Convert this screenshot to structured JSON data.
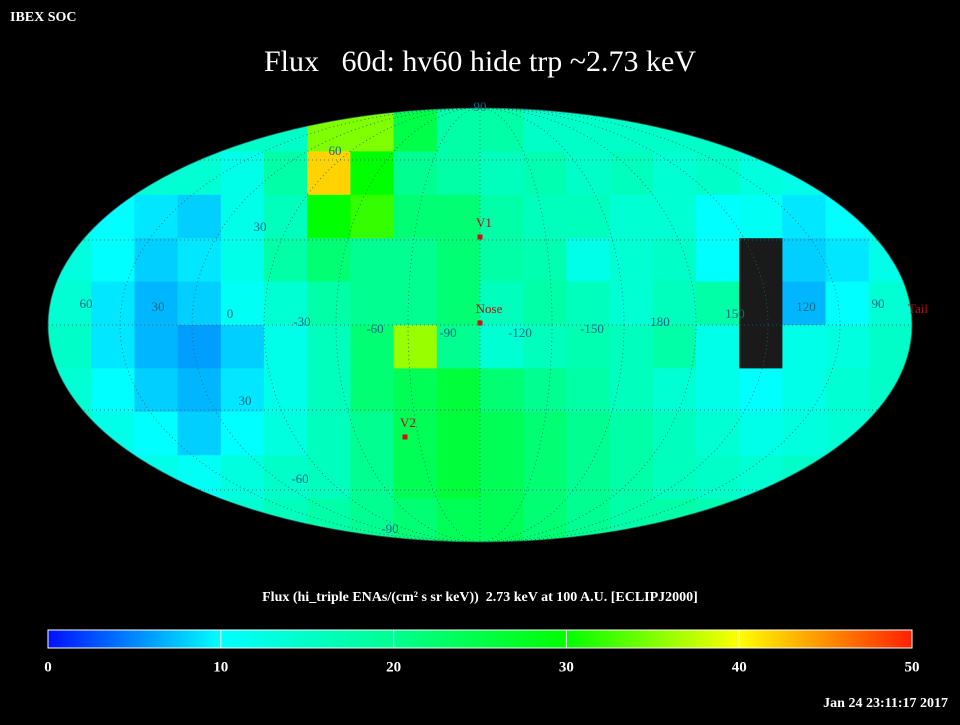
{
  "header": {
    "org": "IBEX SOC",
    "title": "Flux   60d: hv60 hide trp ~2.73 keV",
    "timestamp": "Jan 24 23:11:17 2017"
  },
  "map": {
    "flux": [
      [
        15,
        15,
        15,
        15,
        15,
        15,
        35,
        35,
        25,
        18,
        18,
        15,
        15,
        15,
        15,
        15,
        15,
        15,
        15,
        15
      ],
      [
        14,
        14,
        14,
        14,
        12,
        18,
        42,
        30,
        20,
        18,
        16,
        17,
        15,
        16,
        14,
        15,
        13,
        12,
        14,
        14
      ],
      [
        12,
        10,
        9,
        8,
        12,
        16,
        30,
        32,
        22,
        22,
        18,
        16,
        16,
        14,
        14,
        10,
        11,
        9,
        10,
        12
      ],
      [
        13,
        10,
        8,
        9,
        12,
        18,
        22,
        20,
        20,
        22,
        18,
        17,
        12,
        14,
        15,
        10,
        null,
        8,
        9,
        12
      ],
      [
        14,
        9,
        7,
        8,
        11,
        14,
        18,
        20,
        20,
        22,
        16,
        18,
        16,
        14,
        16,
        18,
        null,
        7,
        10,
        14
      ],
      [
        15,
        9,
        7,
        6,
        8,
        12,
        16,
        22,
        36,
        20,
        14,
        16,
        17,
        16,
        18,
        12,
        null,
        12,
        13,
        15
      ],
      [
        14,
        10,
        8,
        7,
        9,
        12,
        16,
        22,
        24,
        26,
        22,
        20,
        18,
        16,
        14,
        12,
        10,
        12,
        14,
        15
      ],
      [
        15,
        12,
        10,
        8,
        10,
        13,
        16,
        20,
        24,
        26,
        24,
        22,
        20,
        18,
        16,
        14,
        12,
        13,
        14,
        15
      ],
      [
        16,
        14,
        12,
        11,
        13,
        15,
        16,
        20,
        24,
        26,
        24,
        22,
        20,
        18,
        16,
        15,
        14,
        15,
        16,
        16
      ],
      [
        17,
        16,
        15,
        14,
        14,
        16,
        18,
        20,
        22,
        24,
        24,
        22,
        20,
        18,
        18,
        17,
        16,
        16,
        17,
        17
      ]
    ],
    "lat_labels": [
      "90",
      "60",
      "30",
      "30",
      "-60",
      "-90"
    ],
    "lon_labels": [
      "60",
      "30",
      "0",
      "-30",
      "-60",
      "-90",
      "-120",
      "-150",
      "180",
      "150",
      "120",
      "90"
    ],
    "markers": [
      "V1",
      "Nose",
      "V2",
      "Tail"
    ]
  },
  "colorbar": {
    "title": "Flux (hi_triple ENAs/(cm² s sr keV))  2.73 keV at 100 A.U. [ECLIPJ2000]",
    "lim": [
      0,
      50
    ],
    "ticks": [
      0,
      10,
      20,
      30,
      40,
      50
    ],
    "colormap": [
      "#0010ff",
      "#00ffff",
      "#00ff90",
      "#00ff00",
      "#ffff00",
      "#ff2000"
    ]
  }
}
